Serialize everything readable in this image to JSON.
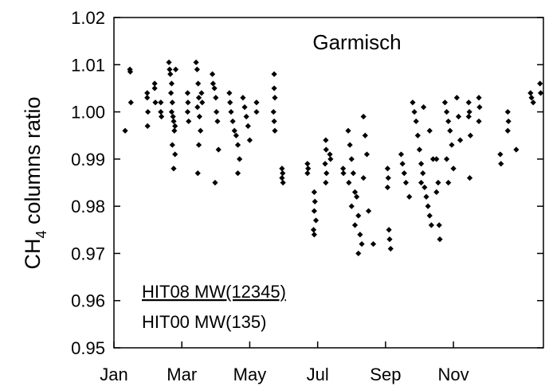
{
  "chart_data": {
    "type": "scatter",
    "annotations": {
      "site": "Garmisch",
      "legend_top": "HIT08 MW(12345)",
      "legend_bottom": "HIT00 MW(135)"
    },
    "ylabel_parts": [
      "CH",
      "4",
      " columns ratio"
    ],
    "color": "#000000",
    "xlim": [
      1,
      13.65
    ],
    "xticks": [
      {
        "value": 1,
        "label": "Jan"
      },
      {
        "value": 3,
        "label": "Mar"
      },
      {
        "value": 5,
        "label": "May"
      },
      {
        "value": 7,
        "label": "Jul"
      },
      {
        "value": 9,
        "label": "Sep"
      },
      {
        "value": 11,
        "label": "Nov"
      }
    ],
    "ylim": [
      0.95,
      1.02
    ],
    "yticks": [
      0.95,
      0.96,
      0.97,
      0.98,
      0.99,
      {
        "value": 1.0,
        "label": "1.00"
      },
      1.01,
      1.02
    ],
    "x": [
      1.33,
      1.47,
      1.48,
      1.5,
      1.98,
      1.98,
      1.99,
      2.0,
      2.2,
      2.2,
      2.22,
      2.38,
      2.38,
      2.4,
      2.62,
      2.64,
      2.66,
      2.7,
      2.68,
      2.72,
      2.7,
      2.74,
      2.76,
      2.78,
      2.72,
      2.8,
      2.76,
      2.8,
      2.82,
      3.17,
      3.18,
      3.17,
      3.2,
      3.42,
      3.45,
      3.48,
      3.5,
      3.46,
      3.52,
      3.55,
      3.5,
      3.47,
      3.58,
      3.6,
      3.9,
      3.92,
      3.96,
      4.0,
      4.02,
      4.05,
      4.08,
      3.98,
      4.4,
      4.42,
      4.45,
      4.5,
      4.55,
      4.6,
      4.65,
      4.7,
      4.65,
      4.8,
      4.85,
      4.9,
      4.95,
      5.0,
      5.2,
      5.2,
      5.72,
      5.72,
      5.74,
      5.7,
      5.72,
      5.74,
      5.95,
      5.97,
      5.95,
      5.98,
      6.7,
      6.72,
      6.7,
      6.9,
      6.92,
      6.9,
      6.95,
      6.88,
      6.9,
      7.24,
      7.25,
      7.22,
      7.26,
      7.24,
      7.36,
      7.38,
      7.75,
      7.76,
      7.9,
      7.95,
      8.0,
      8.05,
      7.92,
      8.1,
      8.15,
      8.0,
      8.2,
      8.1,
      8.25,
      8.3,
      8.2,
      8.35,
      8.4,
      8.45,
      8.35,
      8.5,
      8.64,
      9.06,
      9.08,
      9.06,
      9.1,
      9.12,
      9.15,
      9.46,
      9.5,
      9.55,
      9.6,
      9.7,
      9.8,
      9.85,
      9.9,
      9.95,
      10.0,
      10.05,
      10.1,
      10.15,
      10.2,
      10.25,
      10.3,
      10.35,
      10.12,
      10.3,
      10.4,
      10.05,
      10.5,
      10.55,
      10.5,
      10.58,
      10.6,
      10.75,
      10.8,
      10.85,
      10.9,
      10.95,
      10.8,
      11.0,
      10.85,
      11.1,
      11.15,
      11.2,
      11.45,
      11.47,
      11.45,
      11.5,
      11.48,
      11.75,
      11.77,
      11.75,
      12.38,
      12.4,
      12.6,
      12.62,
      12.6,
      12.85,
      13.27,
      13.3,
      13.35,
      13.55,
      13.57
    ],
    "values": [
      0.996,
      1.009,
      1.0085,
      1.002,
      1.004,
      1.003,
      0.997,
      1.0,
      1.006,
      1.005,
      1.002,
      1.002,
      1.0,
      0.999,
      1.0105,
      1.009,
      1.008,
      1.006,
      1.004,
      1.002,
      1.0,
      0.999,
      0.998,
      0.996,
      0.993,
      0.991,
      0.988,
      0.997,
      1.009,
      1.004,
      1.002,
      1.0,
      0.998,
      1.0105,
      1.009,
      1.006,
      1.003,
      1.001,
      0.999,
      0.996,
      0.993,
      0.987,
      1.004,
      1.002,
      1.008,
      1.006,
      1.005,
      1.003,
      1.0,
      0.998,
      0.992,
      0.985,
      1.004,
      1.002,
      1.0,
      0.998,
      0.996,
      0.995,
      0.993,
      0.99,
      0.987,
      1.003,
      1.001,
      0.999,
      0.997,
      0.994,
      1.002,
      1.0,
      1.008,
      1.005,
      1.003,
      1.0,
      0.998,
      0.996,
      0.988,
      0.987,
      0.986,
      0.985,
      0.989,
      0.988,
      0.987,
      0.983,
      0.981,
      0.979,
      0.977,
      0.975,
      0.974,
      0.994,
      0.992,
      0.989,
      0.987,
      0.985,
      0.991,
      0.99,
      0.988,
      0.987,
      0.996,
      0.993,
      0.99,
      0.987,
      0.985,
      0.983,
      0.982,
      0.98,
      0.978,
      0.976,
      0.974,
      0.972,
      0.97,
      0.999,
      0.995,
      0.991,
      0.986,
      0.979,
      0.972,
      0.988,
      0.986,
      0.984,
      0.975,
      0.973,
      0.971,
      0.991,
      0.989,
      0.987,
      0.985,
      0.982,
      1.002,
      1.0,
      0.998,
      0.995,
      0.992,
      0.989,
      0.987,
      0.984,
      0.982,
      0.98,
      0.978,
      0.976,
      1.001,
      0.996,
      0.99,
      0.985,
      0.99,
      0.985,
      0.983,
      0.976,
      0.973,
      1.002,
      1.0,
      0.998,
      0.996,
      0.993,
      0.99,
      0.988,
      0.985,
      1.003,
      0.999,
      0.994,
      1.002,
      1.0,
      0.999,
      0.995,
      0.986,
      1.003,
      1.001,
      0.998,
      0.991,
      0.989,
      1.0,
      0.998,
      0.996,
      0.992,
      1.004,
      1.003,
      1.002,
      1.006,
      1.004
    ]
  }
}
